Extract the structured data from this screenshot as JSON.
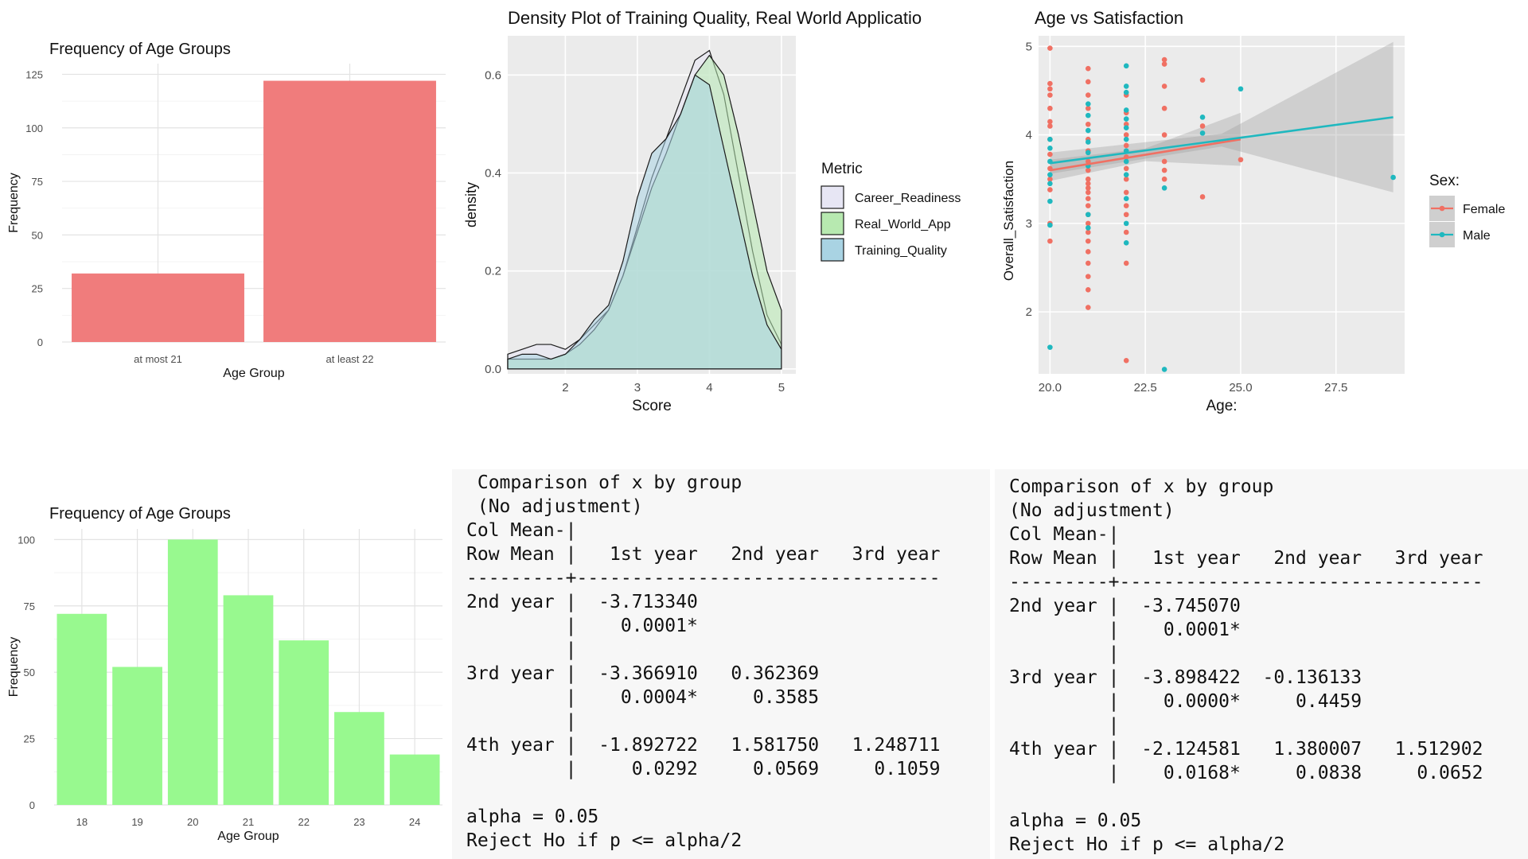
{
  "chart_data": [
    {
      "id": "age-groups-2",
      "type": "bar",
      "title": "Frequency of Age Groups",
      "xlabel": "Age Group",
      "ylabel": "Frequency",
      "categories": [
        "at most 21",
        "at least 22"
      ],
      "values": [
        32,
        122
      ],
      "ylim": [
        0,
        130
      ],
      "yticks": [
        0,
        25,
        50,
        75,
        100,
        125
      ],
      "bar_color": "#f07c7c",
      "grid": true
    },
    {
      "id": "density",
      "type": "area",
      "title": "Density Plot of Training Quality, Real World Applicatio",
      "xlabel": "Score",
      "ylabel": "density",
      "xlim": [
        1.2,
        5.2
      ],
      "ylim": [
        -0.01,
        0.68
      ],
      "xticks": [
        2,
        3,
        4,
        5
      ],
      "yticks": [
        0.0,
        0.2,
        0.4,
        0.6
      ],
      "background": "#ebebeb",
      "legend": {
        "title": "Metric",
        "position": "right"
      },
      "series": [
        {
          "name": "Career_Readiness",
          "color": "#e7e6f4",
          "x": [
            1.2,
            1.4,
            1.6,
            1.8,
            2.0,
            2.2,
            2.4,
            2.6,
            2.8,
            3.0,
            3.2,
            3.4,
            3.6,
            3.8,
            4.0,
            4.2,
            4.4,
            4.6,
            4.8,
            5.0
          ],
          "y": [
            0.03,
            0.04,
            0.05,
            0.05,
            0.04,
            0.06,
            0.09,
            0.12,
            0.19,
            0.29,
            0.39,
            0.47,
            0.55,
            0.63,
            0.65,
            0.56,
            0.4,
            0.24,
            0.11,
            0.05
          ]
        },
        {
          "name": "Real_World_App",
          "color": "#b7e9b0",
          "x": [
            1.2,
            1.4,
            1.6,
            1.8,
            2.0,
            2.2,
            2.4,
            2.6,
            2.8,
            3.0,
            3.2,
            3.4,
            3.6,
            3.8,
            4.0,
            4.2,
            4.4,
            4.6,
            4.8,
            5.0
          ],
          "y": [
            0.02,
            0.02,
            0.02,
            0.02,
            0.03,
            0.05,
            0.08,
            0.12,
            0.19,
            0.28,
            0.37,
            0.44,
            0.52,
            0.6,
            0.64,
            0.6,
            0.48,
            0.34,
            0.2,
            0.12
          ]
        },
        {
          "name": "Training_Quality",
          "color": "#a9d3e3",
          "x": [
            1.2,
            1.4,
            1.6,
            1.8,
            2.0,
            2.2,
            2.4,
            2.6,
            2.8,
            3.0,
            3.2,
            3.4,
            3.6,
            3.8,
            4.0,
            4.2,
            4.4,
            4.6,
            4.8,
            5.0
          ],
          "y": [
            0.02,
            0.03,
            0.03,
            0.02,
            0.03,
            0.06,
            0.1,
            0.13,
            0.22,
            0.35,
            0.44,
            0.47,
            0.52,
            0.6,
            0.58,
            0.45,
            0.32,
            0.19,
            0.09,
            0.04
          ]
        }
      ]
    },
    {
      "id": "age-vs-satisfaction",
      "type": "scatter",
      "title": "Age vs Satisfaction",
      "xlabel": "Age:",
      "ylabel": "Overall_Satisfaction",
      "xlim": [
        19.7,
        29.3
      ],
      "ylim": [
        1.3,
        5.12
      ],
      "xticks": [
        20.0,
        22.5,
        25.0,
        27.5
      ],
      "yticks": [
        2,
        3,
        4,
        5
      ],
      "background": "#ebebeb",
      "legend": {
        "title": "Sex:",
        "position": "right"
      },
      "series": [
        {
          "name": "Female",
          "color": "#f07063",
          "points": [
            [
              20,
              4.98
            ],
            [
              20,
              4.58
            ],
            [
              20,
              4.52
            ],
            [
              20,
              4.45
            ],
            [
              20,
              4.3
            ],
            [
              20,
              4.15
            ],
            [
              20,
              4.1
            ],
            [
              20,
              3.95
            ],
            [
              20,
              3.78
            ],
            [
              20,
              3.62
            ],
            [
              20,
              3.5
            ],
            [
              20,
              3.38
            ],
            [
              20,
              3.0
            ],
            [
              20,
              2.8
            ],
            [
              21,
              4.75
            ],
            [
              21,
              4.6
            ],
            [
              21,
              4.45
            ],
            [
              21,
              4.3
            ],
            [
              21,
              4.12
            ],
            [
              21,
              3.95
            ],
            [
              21,
              3.82
            ],
            [
              21,
              3.7
            ],
            [
              21,
              3.6
            ],
            [
              21,
              3.5
            ],
            [
              21,
              3.45
            ],
            [
              21,
              3.4
            ],
            [
              21,
              3.35
            ],
            [
              21,
              3.28
            ],
            [
              21,
              3.2
            ],
            [
              21,
              3.1
            ],
            [
              21,
              3.0
            ],
            [
              21,
              2.9
            ],
            [
              21,
              2.8
            ],
            [
              21,
              2.68
            ],
            [
              21,
              2.55
            ],
            [
              21,
              2.4
            ],
            [
              21,
              2.25
            ],
            [
              21,
              2.05
            ],
            [
              22,
              4.45
            ],
            [
              22,
              4.25
            ],
            [
              22,
              4.12
            ],
            [
              22,
              4.0
            ],
            [
              22,
              3.88
            ],
            [
              22,
              3.75
            ],
            [
              22,
              3.62
            ],
            [
              22,
              3.5
            ],
            [
              22,
              3.35
            ],
            [
              22,
              3.2
            ],
            [
              22,
              3.1
            ],
            [
              22,
              2.9
            ],
            [
              22,
              2.55
            ],
            [
              22,
              1.45
            ],
            [
              23,
              4.85
            ],
            [
              23,
              4.8
            ],
            [
              23,
              4.55
            ],
            [
              23,
              4.3
            ],
            [
              23,
              4.0
            ],
            [
              23,
              3.7
            ],
            [
              23,
              3.6
            ],
            [
              23,
              3.5
            ],
            [
              24,
              4.62
            ],
            [
              24,
              4.1
            ],
            [
              24,
              3.3
            ],
            [
              25,
              3.72
            ]
          ]
        },
        {
          "name": "Male",
          "color": "#1fb8bf",
          "points": [
            [
              20,
              3.95
            ],
            [
              20,
              3.85
            ],
            [
              20,
              3.7
            ],
            [
              20,
              3.55
            ],
            [
              20,
              3.45
            ],
            [
              20,
              3.25
            ],
            [
              20,
              2.98
            ],
            [
              20,
              1.6
            ],
            [
              21,
              4.35
            ],
            [
              21,
              4.22
            ],
            [
              21,
              4.05
            ],
            [
              21,
              3.92
            ],
            [
              21,
              3.8
            ],
            [
              21,
              3.65
            ],
            [
              21,
              3.1
            ],
            [
              21,
              2.95
            ],
            [
              22,
              4.78
            ],
            [
              22,
              4.55
            ],
            [
              22,
              4.48
            ],
            [
              22,
              4.28
            ],
            [
              22,
              4.18
            ],
            [
              22,
              4.08
            ],
            [
              22,
              3.95
            ],
            [
              22,
              3.82
            ],
            [
              22,
              3.7
            ],
            [
              22,
              3.55
            ],
            [
              22,
              3.28
            ],
            [
              22,
              3.0
            ],
            [
              22,
              2.78
            ],
            [
              23,
              3.4
            ],
            [
              23,
              1.35
            ],
            [
              24,
              4.2
            ],
            [
              24,
              4.02
            ],
            [
              25,
              4.52
            ],
            [
              29,
              3.52
            ]
          ]
        }
      ],
      "trend_lines": [
        {
          "series": "Female",
          "x": [
            20,
            25
          ],
          "y": [
            3.6,
            3.95
          ]
        },
        {
          "series": "Male",
          "x": [
            20,
            29
          ],
          "y": [
            3.68,
            4.2
          ]
        }
      ]
    },
    {
      "id": "age-groups-7",
      "type": "bar",
      "title": "Frequency of Age Groups",
      "xlabel": "Age Group",
      "ylabel": "Frequency",
      "categories": [
        "18",
        "19",
        "20",
        "21",
        "22",
        "23",
        "24"
      ],
      "values": [
        72,
        52,
        100,
        79,
        62,
        35,
        19
      ],
      "ylim": [
        0,
        104
      ],
      "yticks": [
        0,
        25,
        50,
        75,
        100
      ],
      "bar_color": "#98f98f",
      "grid": true
    }
  ],
  "text_panels": [
    {
      "lines": [
        " Comparison of x by group",
        " (No adjustment)",
        "Col Mean-|",
        "Row Mean |   1st year   2nd year   3rd year",
        "---------+---------------------------------",
        "2nd year |  -3.713340",
        "         |    0.0001*",
        "         |",
        "3rd year |  -3.366910   0.362369",
        "         |    0.0004*     0.3585",
        "         |",
        "4th year |  -1.892722   1.581750   1.248711",
        "         |     0.0292     0.0569     0.1059",
        "",
        "alpha = 0.05",
        "Reject Ho if p <= alpha/2"
      ]
    },
    {
      "lines": [
        "Comparison of x by group",
        "(No adjustment)",
        "Col Mean-|",
        "Row Mean |   1st year   2nd year   3rd year",
        "---------+---------------------------------",
        "2nd year |  -3.745070",
        "         |    0.0001*",
        "         |",
        "3rd year |  -3.898422  -0.136133",
        "         |    0.0000*     0.4459",
        "         |",
        "4th year |  -2.124581   1.380007   1.512902",
        "         |    0.0168*     0.0838     0.0652",
        "",
        "alpha = 0.05",
        "Reject Ho if p <= alpha/2"
      ]
    }
  ]
}
